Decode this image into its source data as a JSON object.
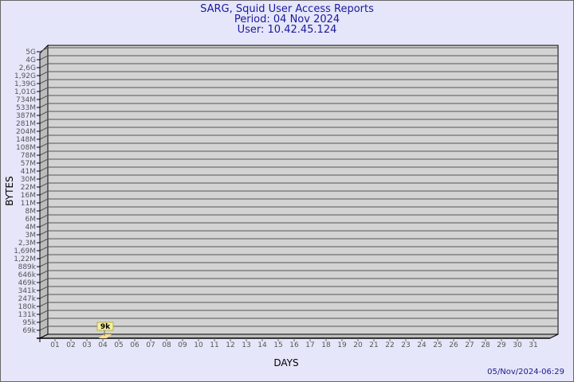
{
  "chart_data": {
    "type": "bar",
    "title": [
      "SARG, Squid User Access Reports",
      "Period: 04 Nov 2024",
      "User: 10.42.45.124"
    ],
    "xlabel": "DAYS",
    "ylabel": "BYTES",
    "categories": [
      "01",
      "02",
      "03",
      "04",
      "05",
      "06",
      "07",
      "08",
      "09",
      "10",
      "11",
      "12",
      "13",
      "14",
      "15",
      "16",
      "17",
      "18",
      "19",
      "20",
      "21",
      "22",
      "23",
      "24",
      "25",
      "26",
      "27",
      "28",
      "29",
      "30",
      "31"
    ],
    "y_tick_labels": [
      "5G",
      "4G",
      "2,6G",
      "1,92G",
      "1,39G",
      "1,01G",
      "734M",
      "533M",
      "387M",
      "281M",
      "204M",
      "148M",
      "108M",
      "78M",
      "57M",
      "41M",
      "30M",
      "22M",
      "16M",
      "11M",
      "8M",
      "6M",
      "4M",
      "3M",
      "2,3M",
      "1,69M",
      "1,22M",
      "889k",
      "646k",
      "469k",
      "341k",
      "247k",
      "180k",
      "131k",
      "95k",
      "69k"
    ],
    "series": [
      {
        "values": [
          null,
          null,
          null,
          9000,
          null,
          null,
          null,
          null,
          null,
          null,
          null,
          null,
          null,
          null,
          null,
          null,
          null,
          null,
          null,
          null,
          null,
          null,
          null,
          null,
          null,
          null,
          null,
          null,
          null,
          null,
          null
        ]
      }
    ],
    "data_labels": [
      {
        "category": "04",
        "label": "9k"
      }
    ],
    "grid": true,
    "colors": {
      "background": "#e6e6fa",
      "plot": "#d3d3d3",
      "bar": "#ffe08a",
      "label_box": "#f5f0a0",
      "title": "#1a1a9a"
    }
  },
  "footer": {
    "timestamp": "05/Nov/2024-06:29"
  }
}
